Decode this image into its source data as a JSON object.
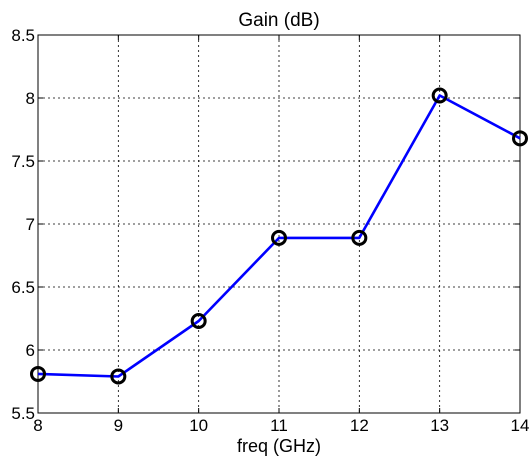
{
  "chart_data": {
    "type": "line",
    "title": "Gain (dB)",
    "xlabel": "freq (GHz)",
    "ylabel": "",
    "xlim": [
      8,
      14
    ],
    "ylim": [
      5.5,
      8.5
    ],
    "xticks": [
      8,
      9,
      10,
      11,
      12,
      13,
      14
    ],
    "xtick_labels": [
      "8",
      "9",
      "10",
      "11",
      "12",
      "13",
      "14"
    ],
    "yticks": [
      5.5,
      6,
      6.5,
      7,
      7.5,
      8,
      8.5
    ],
    "ytick_labels": [
      "5.5",
      "6",
      "6.5",
      "7",
      "7.5",
      "8",
      "8.5"
    ],
    "grid": true,
    "legend": "none",
    "series": [
      {
        "x": [
          8,
          9,
          10,
          11,
          12,
          13,
          14
        ],
        "values": [
          5.81,
          5.79,
          6.23,
          6.89,
          6.89,
          8.02,
          7.68
        ],
        "color": "#0000ff",
        "marker": "circle",
        "marker_color": "#000000"
      }
    ]
  }
}
